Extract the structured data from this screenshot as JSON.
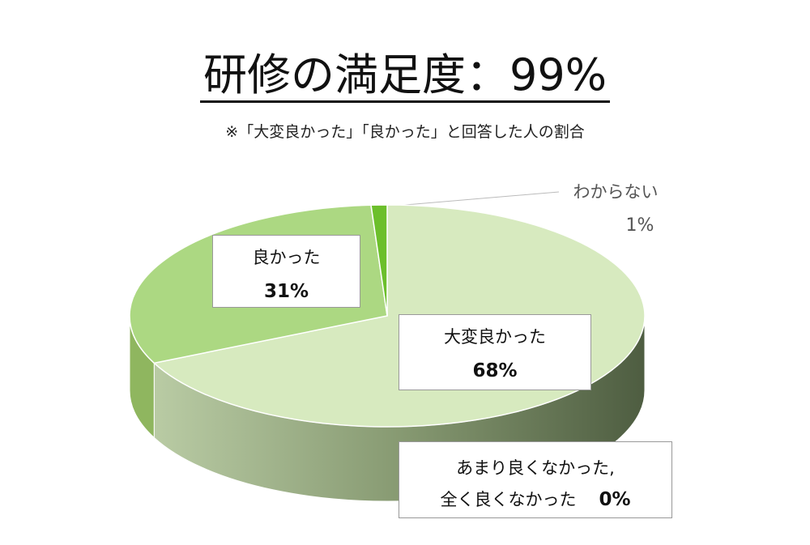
{
  "chart_data": {
    "type": "pie3d",
    "title": "研修の満足度：99%",
    "subtitle": "※「大変良かった」「良かった」と回答した人の割合",
    "categories": [
      "大変良かった",
      "良かった",
      "わからない",
      "あまり良くなかった,\n全く良くなかった"
    ],
    "values": [
      68,
      31,
      1,
      0
    ],
    "value_labels": [
      "68%",
      "31%",
      "1%",
      "0%"
    ],
    "colors": [
      "#d7eabf",
      "#acd882",
      "#6cbf2b",
      "#4f6b3a"
    ]
  }
}
